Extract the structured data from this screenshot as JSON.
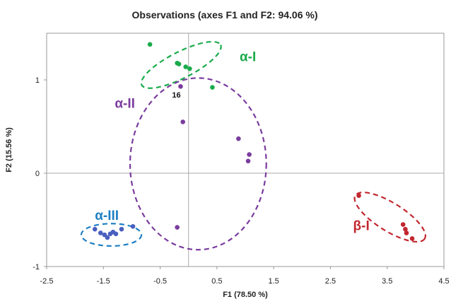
{
  "chart_data": {
    "type": "scatter",
    "title": "Observations (axes F1 and F2: 94.06 %)",
    "xlabel": "F1 (78.50 %)",
    "ylabel": "F2 (15.56 %)",
    "xlim": [
      -2.5,
      4.5
    ],
    "ylim": [
      -1,
      1.5
    ],
    "xticks": [
      "-2.5",
      "-1.5",
      "-0.5",
      "0.5",
      "1.5",
      "2.5",
      "3.5",
      "4.5"
    ],
    "yticks": [
      "-1",
      "0",
      "1"
    ],
    "grid": false,
    "series": [
      {
        "name": "α-I",
        "color": "#1aab4b",
        "points": [
          {
            "x": -0.68,
            "y": 1.38
          },
          {
            "x": -0.2,
            "y": 1.18
          },
          {
            "x": -0.17,
            "y": 1.17
          },
          {
            "x": -0.05,
            "y": 1.14
          },
          {
            "x": 0.02,
            "y": 1.12
          },
          {
            "x": 0.42,
            "y": 0.92
          }
        ]
      },
      {
        "name": "α-II",
        "color": "#7a3c9e",
        "points": [
          {
            "x": -0.14,
            "y": 0.93,
            "label": "16"
          },
          {
            "x": -0.1,
            "y": 0.55
          },
          {
            "x": 0.88,
            "y": 0.37
          },
          {
            "x": 1.07,
            "y": 0.2
          },
          {
            "x": 1.05,
            "y": 0.13
          },
          {
            "x": -0.2,
            "y": -0.58
          }
        ]
      },
      {
        "name": "α-III",
        "color": "#4a5fbf",
        "points": [
          {
            "x": -1.65,
            "y": -0.6
          },
          {
            "x": -1.55,
            "y": -0.64
          },
          {
            "x": -1.48,
            "y": -0.66
          },
          {
            "x": -1.43,
            "y": -0.69
          },
          {
            "x": -1.38,
            "y": -0.65
          },
          {
            "x": -1.33,
            "y": -0.63
          },
          {
            "x": -1.28,
            "y": -0.65
          },
          {
            "x": -1.18,
            "y": -0.6
          },
          {
            "x": -0.98,
            "y": -0.57
          }
        ]
      },
      {
        "name": "β-I",
        "color": "#c2262e",
        "points": [
          {
            "x": 3.0,
            "y": -0.24
          },
          {
            "x": 3.78,
            "y": -0.55
          },
          {
            "x": 3.82,
            "y": -0.6
          },
          {
            "x": 3.84,
            "y": -0.64
          },
          {
            "x": 3.94,
            "y": -0.7
          }
        ]
      }
    ],
    "groups": [
      {
        "name": "α-I",
        "color": "#1aab4b",
        "cx": -0.13,
        "cy": 1.16,
        "rx": 0.78,
        "ry": 0.14,
        "angle_deg": -27
      },
      {
        "name": "α-II",
        "color": "#7a3c9e",
        "cx": 0.17,
        "cy": 0.1,
        "rx": 1.2,
        "ry": 0.92,
        "angle_deg": 0
      },
      {
        "name": "α-III",
        "color": "#1e7fc4",
        "cx": -1.36,
        "cy": -0.66,
        "rx": 0.53,
        "ry": 0.12,
        "angle_deg": 0
      },
      {
        "name": "β-I",
        "color": "#c2262e",
        "cx": 3.55,
        "cy": -0.47,
        "rx": 0.72,
        "ry": 0.15,
        "angle_deg": 32
      }
    ],
    "group_labels": [
      {
        "text": "α-I",
        "color": "#1aab4b",
        "x": 0.9,
        "y": 1.2
      },
      {
        "text": "α-II",
        "color": "#7a3c9e",
        "x": -1.3,
        "y": 0.7
      },
      {
        "text": "α-III",
        "color": "#1e7fc4",
        "x": -1.65,
        "y": -0.5
      },
      {
        "text": "β-I",
        "color": "#c2262e",
        "x": 2.9,
        "y": -0.61
      }
    ]
  }
}
